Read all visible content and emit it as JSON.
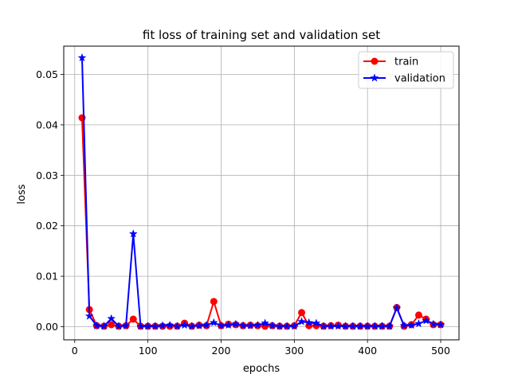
{
  "chart_data": {
    "type": "line",
    "title": "fit loss of training set and validation set",
    "xlabel": "epochs",
    "ylabel": "loss",
    "xlim": [
      -15,
      525
    ],
    "ylim": [
      -0.0026,
      0.0556
    ],
    "xticks": [
      0,
      100,
      200,
      300,
      400,
      500
    ],
    "xtick_labels": [
      "0",
      "100",
      "200",
      "300",
      "400",
      "500"
    ],
    "yticks": [
      0.0,
      0.01,
      0.02,
      0.03,
      0.04,
      0.05
    ],
    "ytick_labels": [
      "0.00",
      "0.01",
      "0.02",
      "0.03",
      "0.04",
      "0.05"
    ],
    "grid": true,
    "legend_position": "top-right",
    "x": [
      10,
      20,
      30,
      40,
      50,
      60,
      70,
      80,
      90,
      100,
      110,
      120,
      130,
      140,
      150,
      160,
      170,
      180,
      190,
      200,
      210,
      220,
      230,
      240,
      250,
      260,
      270,
      280,
      290,
      300,
      310,
      320,
      330,
      340,
      350,
      360,
      370,
      380,
      390,
      400,
      410,
      420,
      430,
      440,
      450,
      460,
      470,
      480,
      490,
      500
    ],
    "series": [
      {
        "name": "train",
        "color": "#ff0000",
        "marker": "circle",
        "values": [
          0.0414,
          0.0034,
          0.0002,
          0.0001,
          0.0004,
          0.0001,
          0.0002,
          0.0015,
          0.0001,
          0.0001,
          0.0001,
          0.0001,
          0.0001,
          0.0001,
          0.0007,
          0.0001,
          0.0003,
          0.0002,
          0.005,
          0.0002,
          0.0005,
          0.0004,
          0.0002,
          0.0003,
          0.0002,
          0.0001,
          0.0002,
          0.0001,
          0.0001,
          0.0002,
          0.0028,
          0.0002,
          0.0002,
          0.0001,
          0.0002,
          0.0003,
          0.0001,
          0.0001,
          0.0001,
          0.0001,
          0.0001,
          0.0001,
          0.0001,
          0.0038,
          0.0001,
          0.0004,
          0.0023,
          0.0015,
          0.0004,
          0.0004
        ]
      },
      {
        "name": "validation",
        "color": "#0000ff",
        "marker": "star",
        "values": [
          0.0533,
          0.0021,
          0.0002,
          0.0001,
          0.0016,
          0.0001,
          0.0002,
          0.0184,
          0.0001,
          0.0001,
          0.0001,
          0.0002,
          0.0003,
          0.0001,
          0.0003,
          0.0001,
          0.0002,
          0.0003,
          0.0008,
          0.0002,
          0.0003,
          0.0005,
          0.0002,
          0.0002,
          0.0003,
          0.0007,
          0.0002,
          0.0001,
          0.0001,
          0.0001,
          0.001,
          0.0008,
          0.0007,
          0.0001,
          0.0001,
          0.0001,
          0.0001,
          0.0001,
          0.0001,
          0.0001,
          0.0001,
          0.0001,
          0.0001,
          0.0037,
          0.0002,
          0.0003,
          0.0006,
          0.0012,
          0.0005,
          0.0004
        ]
      }
    ]
  }
}
